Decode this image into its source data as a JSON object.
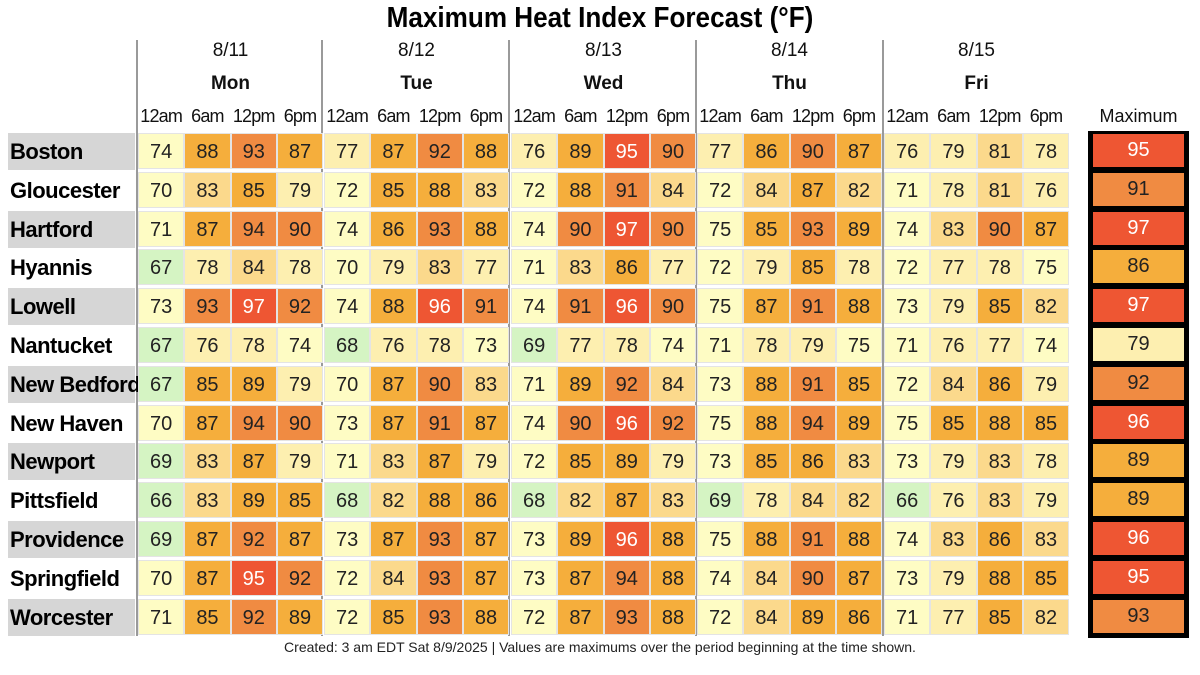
{
  "chart_data": {
    "type": "heatmap",
    "title": "Maximum Heat Index Forecast (°F)",
    "days": [
      {
        "date": "8/11",
        "day": "Mon"
      },
      {
        "date": "8/12",
        "day": "Tue"
      },
      {
        "date": "8/13",
        "day": "Wed"
      },
      {
        "date": "8/14",
        "day": "Thu"
      },
      {
        "date": "8/15",
        "day": "Fri"
      }
    ],
    "times": [
      "12am",
      "6am",
      "12pm",
      "6pm"
    ],
    "max_label": "Maximum",
    "rows": [
      {
        "city": "Boston",
        "values": [
          74,
          88,
          93,
          87,
          77,
          87,
          92,
          88,
          76,
          89,
          95,
          90,
          77,
          86,
          90,
          87,
          76,
          79,
          81,
          78
        ],
        "max": 95
      },
      {
        "city": "Gloucester",
        "values": [
          70,
          83,
          85,
          79,
          72,
          85,
          88,
          83,
          72,
          88,
          91,
          84,
          72,
          84,
          87,
          82,
          71,
          78,
          81,
          76
        ],
        "max": 91
      },
      {
        "city": "Hartford",
        "values": [
          71,
          87,
          94,
          90,
          74,
          86,
          93,
          88,
          74,
          90,
          97,
          90,
          75,
          85,
          93,
          89,
          74,
          83,
          90,
          87
        ],
        "max": 97
      },
      {
        "city": "Hyannis",
        "values": [
          67,
          78,
          84,
          78,
          70,
          79,
          83,
          77,
          71,
          83,
          86,
          77,
          72,
          79,
          85,
          78,
          72,
          77,
          78,
          75
        ],
        "max": 86
      },
      {
        "city": "Lowell",
        "values": [
          73,
          93,
          97,
          92,
          74,
          88,
          96,
          91,
          74,
          91,
          96,
          90,
          75,
          87,
          91,
          88,
          73,
          79,
          85,
          82
        ],
        "max": 97
      },
      {
        "city": "Nantucket",
        "values": [
          67,
          76,
          78,
          74,
          68,
          76,
          78,
          73,
          69,
          77,
          78,
          74,
          71,
          78,
          79,
          75,
          71,
          76,
          77,
          74
        ],
        "max": 79
      },
      {
        "city": "New Bedford",
        "values": [
          67,
          85,
          89,
          79,
          70,
          87,
          90,
          83,
          71,
          89,
          92,
          84,
          73,
          88,
          91,
          85,
          72,
          84,
          86,
          79
        ],
        "max": 92
      },
      {
        "city": "New Haven",
        "values": [
          70,
          87,
          94,
          90,
          73,
          87,
          91,
          87,
          74,
          90,
          96,
          92,
          75,
          88,
          94,
          89,
          75,
          85,
          88,
          85
        ],
        "max": 96
      },
      {
        "city": "Newport",
        "values": [
          69,
          83,
          87,
          79,
          71,
          83,
          87,
          79,
          72,
          85,
          89,
          79,
          73,
          85,
          86,
          83,
          73,
          79,
          83,
          78
        ],
        "max": 89
      },
      {
        "city": "Pittsfield",
        "values": [
          66,
          83,
          89,
          85,
          68,
          82,
          88,
          86,
          68,
          82,
          87,
          83,
          69,
          78,
          84,
          82,
          66,
          76,
          83,
          79
        ],
        "max": 89
      },
      {
        "city": "Providence",
        "values": [
          69,
          87,
          92,
          87,
          73,
          87,
          93,
          87,
          73,
          89,
          96,
          88,
          75,
          88,
          91,
          88,
          74,
          83,
          86,
          83
        ],
        "max": 96
      },
      {
        "city": "Springfield",
        "values": [
          70,
          87,
          95,
          92,
          72,
          84,
          93,
          87,
          73,
          87,
          94,
          88,
          74,
          84,
          90,
          87,
          73,
          79,
          88,
          85
        ],
        "max": 95
      },
      {
        "city": "Worcester",
        "values": [
          71,
          85,
          92,
          89,
          72,
          85,
          93,
          88,
          72,
          87,
          93,
          88,
          72,
          84,
          89,
          86,
          71,
          77,
          85,
          82
        ],
        "max": 93
      }
    ],
    "color_scale": [
      {
        "max": 69,
        "color": "#d5f4c3"
      },
      {
        "max": 75,
        "color": "#fefcc4"
      },
      {
        "max": 79,
        "color": "#fdefb0"
      },
      {
        "max": 84,
        "color": "#fbd98c"
      },
      {
        "max": 89,
        "color": "#f5ae3c"
      },
      {
        "max": 94,
        "color": "#f08b42"
      },
      {
        "max": 200,
        "color": "#ee5633"
      }
    ],
    "footer": "Created: 3 am EDT Sat 8/9/2025  |  Values are maximums over the period beginning at the time shown."
  }
}
